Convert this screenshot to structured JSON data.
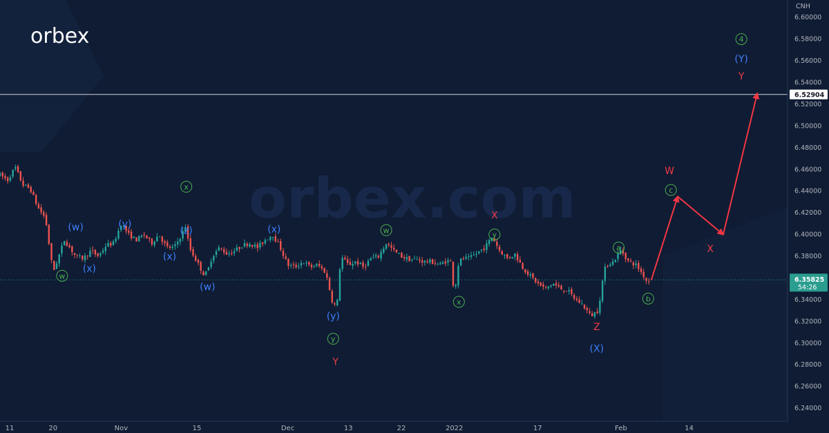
{
  "brand": {
    "logo_text": "orbex",
    "watermark_text": "orbex.com"
  },
  "colors": {
    "background": "#0f1c33",
    "up_candle": "#26a69a",
    "down_candle": "#ef5350",
    "label_green": "#4caf50",
    "label_blue": "#3f7fff",
    "label_red": "#f03a46",
    "arrow": "#f23645",
    "price_line": "#26a69a",
    "current_price_bg": "#2a9d8f"
  },
  "chart_data": {
    "type": "candlestick",
    "axis_symbol": "CNH",
    "ylim": [
      6.228,
      6.616
    ],
    "y_ticks": [
      "6.60000",
      "6.58000",
      "6.56000",
      "6.54000",
      "6.52000",
      "6.50000",
      "6.48000",
      "6.46000",
      "6.44000",
      "6.42000",
      "6.40000",
      "6.38000",
      "6.36000",
      "6.34000",
      "6.32000",
      "6.30000",
      "6.28000",
      "6.26000",
      "6.24000"
    ],
    "x_ticks": [
      {
        "label": "11",
        "x": 0
      },
      {
        "label": "20",
        "x": 7
      },
      {
        "label": "Nov",
        "x": 16
      },
      {
        "label": "15",
        "x": 26
      },
      {
        "label": "Dec",
        "x": 38
      },
      {
        "label": "13",
        "x": 46
      },
      {
        "label": "22",
        "x": 53
      },
      {
        "label": "2022",
        "x": 60
      },
      {
        "label": "17",
        "x": 71
      },
      {
        "label": "Feb",
        "x": 82
      },
      {
        "label": "14",
        "x": 91
      }
    ],
    "horizontal_line": {
      "value": 6.52904,
      "label": "6.52904"
    },
    "current_price": {
      "value": 6.35825,
      "label": "6.35825",
      "countdown": "54:26"
    },
    "price_path": [
      [
        0,
        6.455
      ],
      [
        1,
        6.45
      ],
      [
        2,
        6.462
      ],
      [
        3,
        6.446
      ],
      [
        4,
        6.442
      ],
      [
        5,
        6.425
      ],
      [
        6,
        6.415
      ],
      [
        7,
        6.365
      ],
      [
        7.5,
        6.375
      ],
      [
        8,
        6.385
      ],
      [
        8.5,
        6.395
      ],
      [
        9,
        6.39
      ],
      [
        10,
        6.38
      ],
      [
        11,
        6.378
      ],
      [
        12,
        6.385
      ],
      [
        13,
        6.38
      ],
      [
        14,
        6.39
      ],
      [
        15,
        6.392
      ],
      [
        16,
        6.41
      ],
      [
        17,
        6.4
      ],
      [
        18,
        6.395
      ],
      [
        19,
        6.4
      ],
      [
        20,
        6.392
      ],
      [
        21,
        6.4
      ],
      [
        22,
        6.388
      ],
      [
        23,
        6.388
      ],
      [
        24,
        6.4
      ],
      [
        24.5,
        6.408
      ],
      [
        25,
        6.388
      ],
      [
        26,
        6.375
      ],
      [
        27,
        6.362
      ],
      [
        27.5,
        6.368
      ],
      [
        28,
        6.38
      ],
      [
        29,
        6.388
      ],
      [
        30,
        6.382
      ],
      [
        31,
        6.385
      ],
      [
        32,
        6.39
      ],
      [
        33,
        6.392
      ],
      [
        34,
        6.388
      ],
      [
        35,
        6.395
      ],
      [
        36,
        6.4
      ],
      [
        37,
        6.388
      ],
      [
        38,
        6.372
      ],
      [
        39,
        6.37
      ],
      [
        40,
        6.375
      ],
      [
        41,
        6.37
      ],
      [
        42,
        6.372
      ],
      [
        43,
        6.365
      ],
      [
        44,
        6.335
      ],
      [
        44.5,
        6.335
      ],
      [
        45,
        6.38
      ],
      [
        46,
        6.372
      ],
      [
        47,
        6.375
      ],
      [
        48,
        6.37
      ],
      [
        49,
        6.378
      ],
      [
        50,
        6.38
      ],
      [
        51,
        6.392
      ],
      [
        52,
        6.385
      ],
      [
        53,
        6.38
      ],
      [
        54,
        6.377
      ],
      [
        55,
        6.377
      ],
      [
        56,
        6.375
      ],
      [
        57,
        6.375
      ],
      [
        58,
        6.372
      ],
      [
        59,
        6.376
      ],
      [
        59.5,
        6.375
      ],
      [
        60,
        6.345
      ],
      [
        60.5,
        6.372
      ],
      [
        61,
        6.378
      ],
      [
        62,
        6.378
      ],
      [
        63,
        6.383
      ],
      [
        64,
        6.388
      ],
      [
        65,
        6.398
      ],
      [
        66,
        6.385
      ],
      [
        67,
        6.378
      ],
      [
        68,
        6.382
      ],
      [
        69,
        6.37
      ],
      [
        70,
        6.362
      ],
      [
        71,
        6.355
      ],
      [
        72,
        6.35
      ],
      [
        73,
        6.355
      ],
      [
        74,
        6.35
      ],
      [
        75,
        6.348
      ],
      [
        76,
        6.34
      ],
      [
        77,
        6.335
      ],
      [
        77.5,
        6.33
      ],
      [
        78,
        6.325
      ],
      [
        79,
        6.33
      ],
      [
        79.5,
        6.355
      ],
      [
        80,
        6.372
      ],
      [
        81,
        6.375
      ],
      [
        82,
        6.386
      ],
      [
        83,
        6.375
      ],
      [
        84,
        6.372
      ],
      [
        85,
        6.362
      ],
      [
        85.5,
        6.356
      ],
      [
        86,
        6.358
      ]
    ],
    "x_range": [
      0,
      104
    ],
    "projection_path": [
      [
        86,
        6.358
      ],
      [
        89.5,
        6.435
      ],
      [
        95.5,
        6.4
      ],
      [
        100,
        6.53
      ]
    ],
    "wave_labels": [
      {
        "text": "w",
        "circled": true,
        "color": "green",
        "x": 8.2,
        "y": 6.362
      },
      {
        "text": "(w)",
        "color": "blue",
        "x": 10,
        "y": 6.407
      },
      {
        "text": "(x)",
        "color": "blue",
        "x": 11.8,
        "y": 6.369
      },
      {
        "text": "(y)",
        "color": "blue",
        "x": 16.5,
        "y": 6.41
      },
      {
        "text": "(x)",
        "color": "blue",
        "x": 22.4,
        "y": 6.38
      },
      {
        "text": "x",
        "circled": true,
        "color": "green",
        "x": 24.6,
        "y": 6.444
      },
      {
        "text": "(z)",
        "color": "blue",
        "x": 24.6,
        "y": 6.404
      },
      {
        "text": "(w)",
        "color": "blue",
        "x": 27.4,
        "y": 6.352
      },
      {
        "text": "(x)",
        "color": "blue",
        "x": 36.2,
        "y": 6.405
      },
      {
        "text": "(y)",
        "color": "blue",
        "x": 44,
        "y": 6.325
      },
      {
        "text": "y",
        "circled": true,
        "color": "green",
        "x": 44,
        "y": 6.304
      },
      {
        "text": "Y",
        "color": "red",
        "x": 44.3,
        "y": 6.283
      },
      {
        "text": "w",
        "circled": true,
        "color": "green",
        "x": 51,
        "y": 6.404
      },
      {
        "text": "x",
        "circled": true,
        "color": "green",
        "x": 60.6,
        "y": 6.338
      },
      {
        "text": "X",
        "color": "red",
        "x": 65.3,
        "y": 6.418
      },
      {
        "text": "y",
        "circled": true,
        "color": "green",
        "x": 65.3,
        "y": 6.4
      },
      {
        "text": "Z",
        "color": "red",
        "x": 78.8,
        "y": 6.315
      },
      {
        "text": "(X)",
        "color": "blue",
        "x": 78.8,
        "y": 6.295
      },
      {
        "text": "a",
        "circled": true,
        "color": "green",
        "x": 81.7,
        "y": 6.388
      },
      {
        "text": "b",
        "circled": true,
        "color": "green",
        "x": 85.6,
        "y": 6.341
      },
      {
        "text": "W",
        "color": "red",
        "x": 88.4,
        "y": 6.459
      },
      {
        "text": "c",
        "circled": true,
        "color": "green",
        "x": 88.6,
        "y": 6.441
      },
      {
        "text": "X",
        "color": "red",
        "x": 93.8,
        "y": 6.387
      },
      {
        "text": "4",
        "circled": true,
        "color": "green",
        "x": 97.9,
        "y": 6.58
      },
      {
        "text": "(Y)",
        "color": "blue",
        "x": 97.9,
        "y": 6.562
      },
      {
        "text": "Y",
        "color": "red",
        "x": 97.9,
        "y": 6.546
      }
    ]
  }
}
